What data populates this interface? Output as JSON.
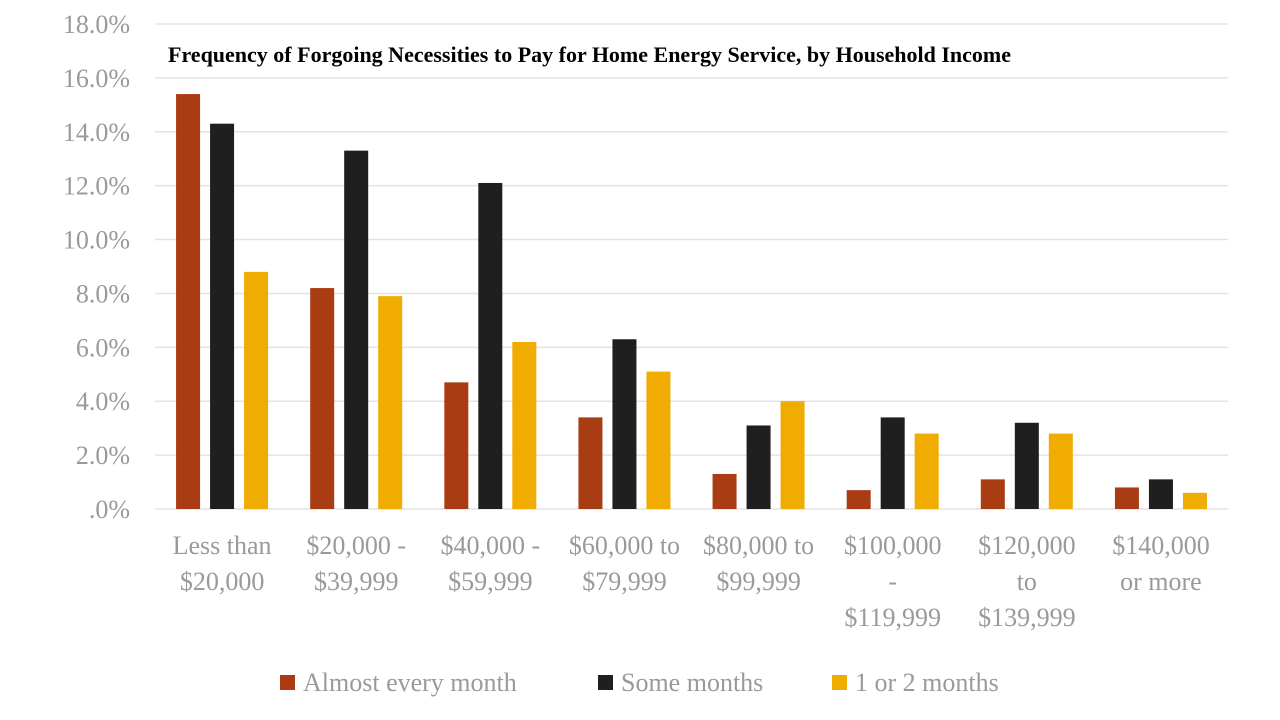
{
  "chart_data": {
    "type": "bar",
    "title": "Frequency of Forgoing Necessities to Pay for Home Energy Service, by Household Income",
    "categories": [
      [
        "Less than",
        "$20,000"
      ],
      [
        "$20,000 -",
        "$39,999"
      ],
      [
        "$40,000 -",
        "$59,999"
      ],
      [
        "$60,000 to",
        "$79,999"
      ],
      [
        "$80,000 to",
        "$99,999"
      ],
      [
        "$100,000",
        "-",
        "$119,999"
      ],
      [
        "$120,000",
        "to",
        "$139,999"
      ],
      [
        "$140,000",
        "or more"
      ]
    ],
    "series": [
      {
        "name": "Almost every month",
        "color": "#a93c12",
        "values": [
          15.4,
          8.2,
          4.7,
          3.4,
          1.3,
          0.7,
          1.1,
          0.8
        ]
      },
      {
        "name": "Some months",
        "color": "#1f1f1f",
        "values": [
          14.3,
          13.3,
          12.1,
          6.3,
          3.1,
          3.4,
          3.2,
          1.1
        ]
      },
      {
        "name": "1 or 2 months",
        "color": "#f0ac00",
        "values": [
          8.8,
          7.9,
          6.2,
          5.1,
          4.0,
          2.8,
          2.8,
          0.6
        ]
      }
    ],
    "yticks": [
      ".0%",
      "2.0%",
      "4.0%",
      "6.0%",
      "8.0%",
      "10.0%",
      "12.0%",
      "14.0%",
      "16.0%",
      "18.0%"
    ],
    "ylim": [
      0,
      18
    ],
    "grid": true,
    "legend": "bottom"
  }
}
